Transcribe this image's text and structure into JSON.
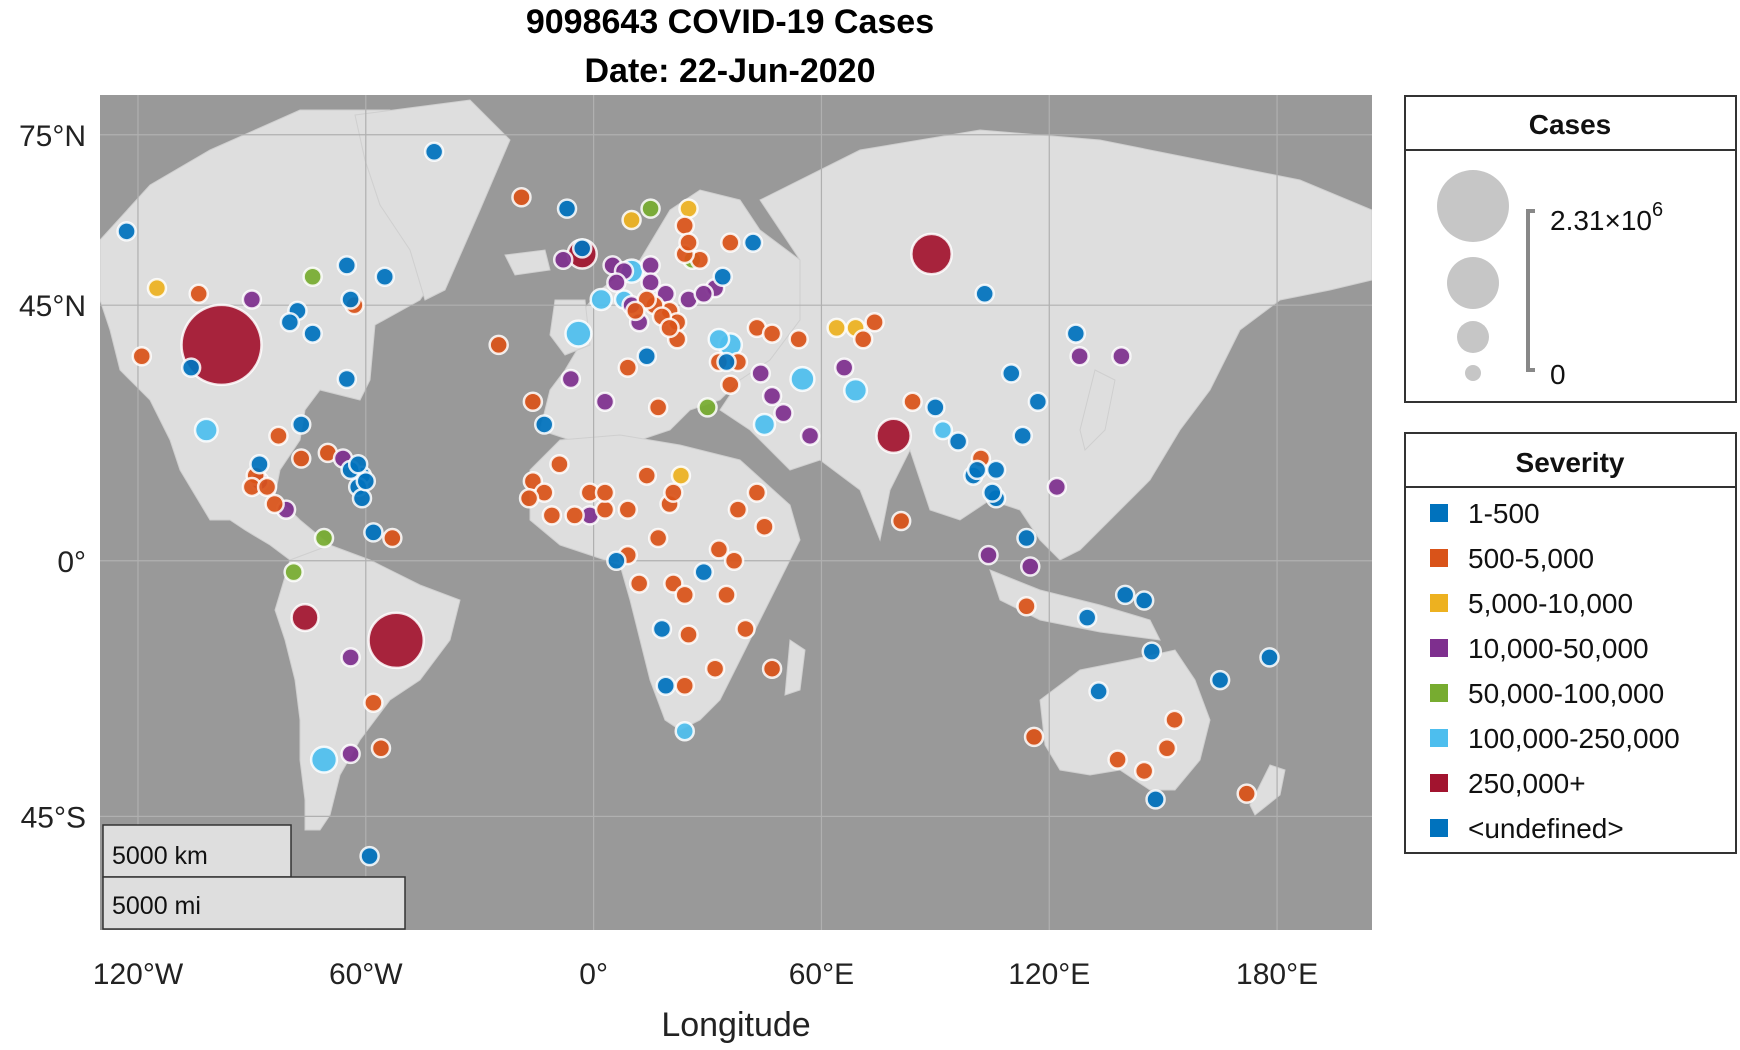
{
  "title_line1": "9098643 COVID-19 Cases",
  "title_line2": "Date: 22-Jun-2020",
  "colors": {
    "ocean": "#999999",
    "land": "#dedede",
    "grid": "#b0b0b0",
    "cat_1_500": "#0072BD",
    "cat_500_5000": "#D95319",
    "cat_5000_10000": "#EDB120",
    "cat_10000_50000": "#7E2F8E",
    "cat_50000_100000": "#77AC30",
    "cat_100000_250000": "#4DBEEE",
    "cat_250000_plus": "#A2142F",
    "cat_undefined": "#0072BD"
  },
  "chart_data": {
    "type": "scatter",
    "title": "9098643 COVID-19 Cases",
    "subtitle": "Date: 22-Jun-2020",
    "xlabel": "Longitude",
    "ylabel": "",
    "xlim": [
      -130,
      205
    ],
    "ylim": [
      -65,
      82
    ],
    "x_ticks": [
      {
        "value": -120,
        "label": "120°W"
      },
      {
        "value": -60,
        "label": "60°W"
      },
      {
        "value": 0,
        "label": "0°"
      },
      {
        "value": 60,
        "label": "60°E"
      },
      {
        "value": 120,
        "label": "120°E"
      },
      {
        "value": 180,
        "label": "180°E"
      }
    ],
    "y_ticks": [
      {
        "value": 75,
        "label": "75°N"
      },
      {
        "value": 45,
        "label": "45°N"
      },
      {
        "value": 0,
        "label": "0°"
      },
      {
        "value": -45,
        "label": "45°S"
      }
    ],
    "grid": true,
    "scale_bars": [
      "5000 km",
      "5000 mi"
    ],
    "size_legend": {
      "title": "Cases",
      "max_label": "2.31×10",
      "max_exponent": "6",
      "min_label": "0"
    },
    "severity_legend": {
      "title": "Severity",
      "items": [
        {
          "label": "1-500",
          "color": "#0072BD"
        },
        {
          "label": "500-5,000",
          "color": "#D95319"
        },
        {
          "label": "5,000-10,000",
          "color": "#EDB120"
        },
        {
          "label": "10,000-50,000",
          "color": "#7E2F8E"
        },
        {
          "label": "50,000-100,000",
          "color": "#77AC30"
        },
        {
          "label": "100,000-250,000",
          "color": "#4DBEEE"
        },
        {
          "label": "250,000+",
          "color": "#A2142F"
        },
        {
          "label": "<undefined>",
          "color": "#0072BD"
        }
      ]
    },
    "points": [
      [
        -98,
        38,
        "u",
        2310000
      ],
      [
        -52,
        -14,
        "u",
        1100000
      ],
      [
        89,
        54,
        "p",
        590000
      ],
      [
        79,
        22,
        "p",
        420000
      ],
      [
        -76,
        -10,
        "p",
        260000
      ],
      [
        -3,
        54,
        "p",
        305000
      ],
      [
        -71,
        -35,
        "c",
        240000
      ],
      [
        -102,
        23,
        "c",
        185000
      ],
      [
        55,
        32,
        "c",
        205000
      ],
      [
        69,
        30,
        "c",
        185000
      ],
      [
        45,
        24,
        "c",
        160000
      ],
      [
        36,
        38,
        "c",
        190000
      ],
      [
        2,
        46,
        "c",
        160000
      ],
      [
        -4,
        40,
        "c",
        240000
      ],
      [
        10,
        51,
        "c",
        190000
      ],
      [
        8,
        46,
        "c",
        100000
      ],
      [
        24,
        -30,
        "c",
        100000
      ],
      [
        92,
        23,
        "c",
        100000
      ],
      [
        -71,
        4,
        "g",
        70000
      ],
      [
        -79,
        -2,
        "g",
        50000
      ],
      [
        30,
        27,
        "g",
        55000
      ],
      [
        15,
        62,
        "g",
        56000
      ],
      [
        26,
        53,
        "g",
        60000
      ],
      [
        -74,
        50,
        "g",
        55000
      ],
      [
        24,
        -6,
        "o",
        3000
      ],
      [
        21,
        12,
        "o",
        1000
      ],
      [
        100,
        15,
        "u",
        3000
      ],
      [
        106,
        11,
        "u",
        350
      ],
      [
        113,
        22,
        "u",
        200
      ],
      [
        117,
        28,
        "u",
        200
      ],
      [
        110,
        33,
        "u",
        200
      ],
      [
        -106,
        34,
        "u",
        200
      ],
      [
        -119,
        36,
        "o",
        1500
      ],
      [
        -115,
        48,
        "y",
        7000
      ],
      [
        -104,
        47,
        "o",
        1000
      ],
      [
        -90,
        46,
        "p",
        20000
      ],
      [
        -80,
        42,
        "u",
        300
      ],
      [
        -64,
        46,
        "u",
        300
      ],
      [
        -55,
        50,
        "u",
        300
      ],
      [
        -123,
        58,
        "u",
        300
      ],
      [
        -42,
        72,
        "u",
        50
      ],
      [
        -65,
        52,
        "u",
        300
      ],
      [
        20,
        10,
        "o",
        2000
      ],
      [
        -16,
        14,
        "o",
        2000
      ],
      [
        -5,
        8,
        "o",
        3000
      ],
      [
        -11,
        8,
        "o",
        1000
      ],
      [
        3,
        9,
        "o",
        2000
      ],
      [
        -1,
        12,
        "o",
        1000
      ],
      [
        9,
        9,
        "o",
        3000
      ],
      [
        14,
        15,
        "o",
        1500
      ],
      [
        23,
        15,
        "y",
        8000
      ],
      [
        33,
        2,
        "o",
        800
      ],
      [
        38,
        9,
        "o",
        4000
      ],
      [
        45,
        6,
        "o",
        2500
      ],
      [
        43,
        12,
        "o",
        3000
      ],
      [
        37,
        0,
        "o",
        4000
      ],
      [
        29,
        -2,
        "u",
        300
      ],
      [
        12,
        -4,
        "o",
        1000
      ],
      [
        18,
        -12,
        "u",
        200
      ],
      [
        25,
        -13,
        "o",
        1000
      ],
      [
        35,
        -6,
        "o",
        800
      ],
      [
        40,
        -12,
        "o",
        700
      ],
      [
        47,
        -19,
        "o",
        1200
      ],
      [
        32,
        -19,
        "o",
        700
      ],
      [
        24,
        -22,
        "o",
        1000
      ],
      [
        19,
        -22,
        "u",
        200
      ],
      [
        17,
        4,
        "o",
        2000
      ],
      [
        21,
        -4,
        "o",
        4000
      ],
      [
        9,
        1,
        "o",
        3000
      ],
      [
        6,
        0,
        "u",
        400
      ],
      [
        -1,
        8,
        "p",
        12000
      ],
      [
        -6,
        32,
        "p",
        10000
      ],
      [
        3,
        28,
        "p",
        11000
      ],
      [
        9,
        34,
        "o",
        1000
      ],
      [
        17,
        27,
        "o",
        800
      ],
      [
        3,
        12,
        "o",
        1000
      ],
      [
        -9,
        17,
        "o",
        4000
      ],
      [
        -13,
        12,
        "o",
        1500
      ],
      [
        -17,
        11,
        "o",
        1200
      ],
      [
        57,
        22,
        "p",
        35000
      ],
      [
        47,
        29,
        "p",
        40000
      ],
      [
        50,
        26,
        "p",
        20000
      ],
      [
        44,
        33,
        "p",
        33000
      ],
      [
        38,
        35,
        "o",
        300
      ],
      [
        36,
        31,
        "o",
        3000
      ],
      [
        35,
        35,
        "u",
        200
      ],
      [
        33,
        39,
        "c",
        150000
      ],
      [
        43,
        41,
        "o",
        2000
      ],
      [
        47,
        40,
        "o",
        1500
      ],
      [
        64,
        41,
        "y",
        6000
      ],
      [
        69,
        41,
        "y",
        6000
      ],
      [
        74,
        42,
        "o",
        3000
      ],
      [
        71,
        39,
        "o",
        5000
      ],
      [
        54,
        39,
        "o",
        3000
      ],
      [
        66,
        34,
        "p",
        29000
      ],
      [
        81,
        7,
        "o",
        2000
      ],
      [
        84,
        28,
        "o",
        1000
      ],
      [
        90,
        27,
        "u",
        300
      ],
      [
        96,
        21,
        "u",
        300
      ],
      [
        101,
        16,
        "u",
        300
      ],
      [
        102,
        18,
        "o",
        2000
      ],
      [
        105,
        12,
        "u",
        100
      ],
      [
        106,
        16,
        "u",
        300
      ],
      [
        104,
        1,
        "p",
        42000
      ],
      [
        114,
        4,
        "u",
        200
      ],
      [
        122,
        13,
        "p",
        30000
      ],
      [
        128,
        36,
        "p",
        12000
      ],
      [
        139,
        36,
        "p",
        18000
      ],
      [
        127,
        40,
        "u",
        100
      ],
      [
        103,
        47,
        "u",
        200
      ],
      [
        115,
        -1,
        "p",
        46000
      ],
      [
        114,
        -8,
        "o",
        1000
      ],
      [
        130,
        -10,
        "u",
        100
      ],
      [
        140,
        -6,
        "u",
        100
      ],
      [
        145,
        -7,
        "u",
        100
      ],
      [
        147,
        -16,
        "u",
        100
      ],
      [
        165,
        -21,
        "u",
        100
      ],
      [
        178,
        -17,
        "u",
        100
      ],
      [
        151,
        -33,
        "o",
        3000
      ],
      [
        145,
        -37,
        "o",
        2000
      ],
      [
        153,
        -28,
        "o",
        1000
      ],
      [
        138,
        -35,
        "o",
        500
      ],
      [
        148,
        -42,
        "u",
        200
      ],
      [
        116,
        -31,
        "o",
        600
      ],
      [
        133,
        -23,
        "u",
        100
      ],
      [
        172,
        -41,
        "o",
        1500
      ],
      [
        -59,
        -52,
        "u",
        100
      ],
      [
        -64,
        -34,
        "p",
        50000
      ],
      [
        -58,
        -25,
        "o",
        1500
      ],
      [
        -56,
        -33,
        "o",
        1000
      ],
      [
        -64,
        -17,
        "p",
        20000
      ],
      [
        -58,
        5,
        "u",
        200
      ],
      [
        -53,
        4,
        "o",
        500
      ],
      [
        -77,
        18,
        "o",
        700
      ],
      [
        -70,
        19,
        "o",
        20000
      ],
      [
        -66,
        18,
        "p",
        10000
      ],
      [
        -61,
        15,
        "u",
        100
      ],
      [
        -62,
        13,
        "u",
        100
      ],
      [
        -61,
        11,
        "u",
        100
      ],
      [
        -60,
        14,
        "u",
        100
      ],
      [
        -64,
        16,
        "u",
        100
      ],
      [
        -62,
        17,
        "u",
        100
      ],
      [
        -86,
        13,
        "o",
        1500
      ],
      [
        -84,
        10,
        "o",
        2000
      ],
      [
        -88,
        14,
        "p",
        11000
      ],
      [
        -81,
        9,
        "p",
        25000
      ],
      [
        -89,
        15,
        "o",
        3000
      ],
      [
        -90,
        13,
        "o",
        2000
      ],
      [
        -88,
        17,
        "u",
        300
      ],
      [
        -77,
        24,
        "u",
        100
      ],
      [
        -65,
        32,
        "u",
        100
      ],
      [
        -83,
        22,
        "o",
        2000
      ],
      [
        -74,
        40,
        "u",
        300
      ],
      [
        -78,
        44,
        "u",
        400
      ],
      [
        -63,
        45,
        "o",
        1000
      ],
      [
        20,
        44,
        "o",
        4000
      ],
      [
        22,
        42,
        "o",
        3000
      ],
      [
        19,
        47,
        "p",
        12000
      ],
      [
        25,
        46,
        "p",
        24000
      ],
      [
        29,
        47,
        "p",
        13000
      ],
      [
        28,
        53,
        "o",
        4000
      ],
      [
        24,
        54,
        "o",
        2000
      ],
      [
        25,
        56,
        "o",
        1000
      ],
      [
        24,
        59,
        "o",
        2000
      ],
      [
        25,
        62,
        "y",
        7000
      ],
      [
        10,
        60,
        "y",
        8000
      ],
      [
        -19,
        64,
        "o",
        1800
      ],
      [
        -7,
        62,
        "u",
        200
      ],
      [
        -8,
        53,
        "p",
        25000
      ],
      [
        -3,
        55,
        "u",
        300
      ],
      [
        5,
        52,
        "p",
        50000
      ],
      [
        15,
        52,
        "p",
        33000
      ],
      [
        15,
        49,
        "p",
        10000
      ],
      [
        14,
        46,
        "o",
        1500
      ],
      [
        16,
        45,
        "o",
        2500
      ],
      [
        11,
        44,
        "o",
        1000
      ],
      [
        18,
        43,
        "o",
        2000
      ],
      [
        20,
        41,
        "o",
        2000
      ],
      [
        32,
        48,
        "p",
        40000
      ],
      [
        36,
        56,
        "o",
        4000
      ],
      [
        34,
        50,
        "u",
        300
      ],
      [
        42,
        56,
        "u",
        200
      ],
      [
        12,
        42,
        "p",
        20000
      ],
      [
        14,
        36,
        "u",
        300
      ],
      [
        22,
        39,
        "o",
        3000
      ],
      [
        33,
        35,
        "o",
        1000
      ],
      [
        -25,
        38,
        "o",
        1500
      ],
      [
        -16,
        28,
        "o",
        2000
      ],
      [
        -13,
        24,
        "u",
        400
      ],
      [
        8,
        51,
        "p",
        30000
      ],
      [
        6,
        49,
        "p",
        20000
      ],
      [
        10,
        45,
        "p",
        40000
      ]
    ]
  }
}
